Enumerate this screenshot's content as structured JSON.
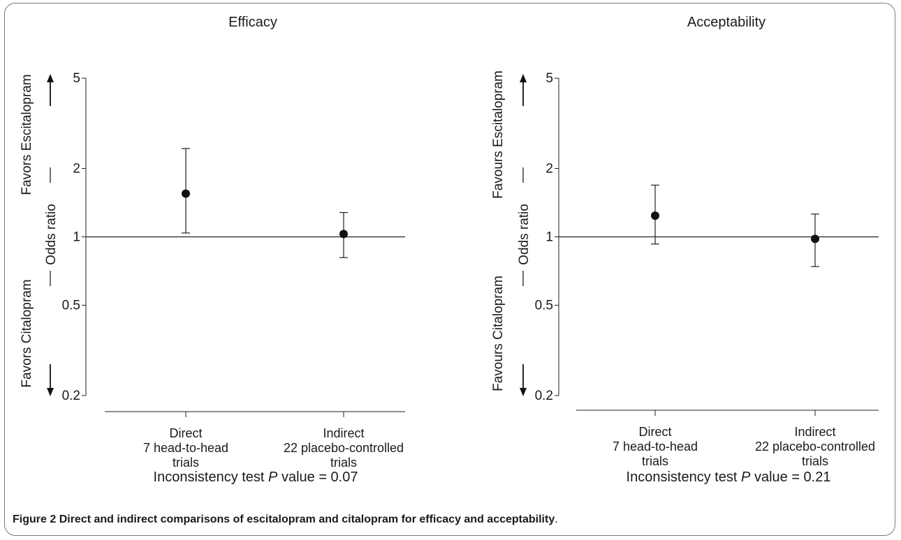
{
  "caption": {
    "figure_label": "Figure 2",
    "text": "Direct and indirect comparisons of escitalopram and citalopram for efficacy and acceptability",
    "end": "."
  },
  "chart_data": [
    {
      "type": "scatter",
      "title": "Efficacy",
      "ylabel": "Odds ratio",
      "y_scale": "log",
      "ylim": [
        0.2,
        5
      ],
      "yticks": [
        5,
        2,
        1,
        0.5,
        0.2
      ],
      "ytick_labels": [
        "5",
        "2",
        "1",
        "0.5",
        "0.2"
      ],
      "reference_line": 1,
      "upper_label": "Favors Escitalopram",
      "lower_label": "Favors Citalopram",
      "categories": [
        [
          "Direct",
          "7 head-to-head",
          "trials"
        ],
        [
          "Indirect",
          "22 placebo-controlled",
          "trials"
        ]
      ],
      "points": [
        {
          "estimate": 1.55,
          "lower": 1.04,
          "upper": 2.45
        },
        {
          "estimate": 1.03,
          "lower": 0.81,
          "upper": 1.28
        }
      ],
      "footer_prefix": "Inconsistency test ",
      "footer_p": "P",
      "footer_suffix": " value = 0.07"
    },
    {
      "type": "scatter",
      "title": "Acceptability",
      "ylabel": "Odds ratio",
      "y_scale": "log",
      "ylim": [
        0.2,
        5
      ],
      "yticks": [
        5,
        2,
        1,
        0.5,
        0.2
      ],
      "ytick_labels": [
        "5",
        "2",
        "1",
        "0.5",
        "0.2"
      ],
      "reference_line": 1,
      "upper_label": "Favours Escitalopram",
      "lower_label": "Favours Citalopram",
      "categories": [
        [
          "Direct",
          "7 head-to-head",
          "trials"
        ],
        [
          "Indirect",
          "22 placebo-controlled",
          "trials"
        ]
      ],
      "points": [
        {
          "estimate": 1.24,
          "lower": 0.93,
          "upper": 1.69
        },
        {
          "estimate": 0.98,
          "lower": 0.74,
          "upper": 1.26
        }
      ],
      "footer_prefix": "Inconsistency test ",
      "footer_p": "P",
      "footer_suffix": " value = 0.21"
    }
  ]
}
